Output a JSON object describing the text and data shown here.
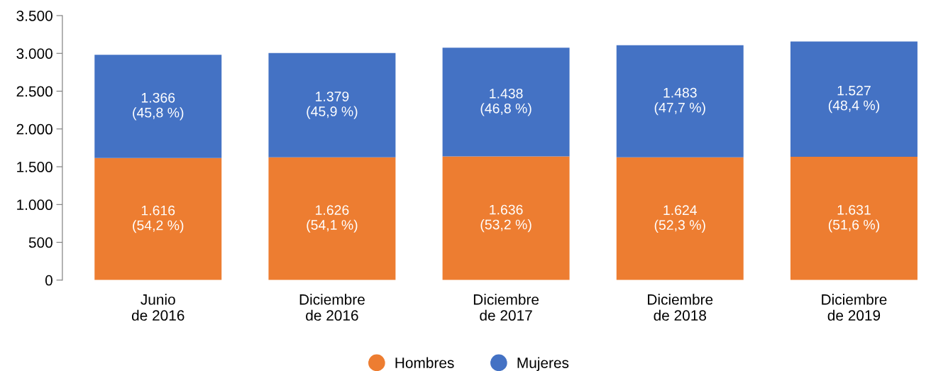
{
  "chart_data": {
    "type": "bar",
    "stacked": true,
    "categories": [
      "Junio\nde 2016",
      "Diciembre\nde 2016",
      "Diciembre\nde 2017",
      "Diciembre\nde 2018",
      "Diciembre\nde 2019"
    ],
    "series": [
      {
        "name": "Hombres",
        "color": "#ed7d31",
        "values": [
          1616,
          1626,
          1636,
          1624,
          1631
        ],
        "value_labels": [
          "1.616\n(54,2 %)",
          "1.626\n(54,1 %)",
          "1.636\n(53,2 %)",
          "1.624\n(52,3 %)",
          "1.631\n(51,6 %)"
        ]
      },
      {
        "name": "Mujeres",
        "color": "#4472c4",
        "values": [
          1366,
          1379,
          1438,
          1483,
          1527
        ],
        "value_labels": [
          "1.366\n(45,8 %)",
          "1.379\n(45,9 %)",
          "1.438\n(46,8 %)",
          "1.483\n(47,7 %)",
          "1.527\n(48,4 %)"
        ]
      }
    ],
    "ylim": [
      0,
      3500
    ],
    "yticks": [
      {
        "value": 0,
        "label": "0"
      },
      {
        "value": 500,
        "label": "500"
      },
      {
        "value": 1000,
        "label": "1.000"
      },
      {
        "value": 1500,
        "label": "1.500"
      },
      {
        "value": 2000,
        "label": "2.000"
      },
      {
        "value": 2500,
        "label": "2.500"
      },
      {
        "value": 3000,
        "label": "3.000"
      },
      {
        "value": 3500,
        "label": "3.500"
      }
    ],
    "grid": false,
    "legend": "bottom"
  }
}
